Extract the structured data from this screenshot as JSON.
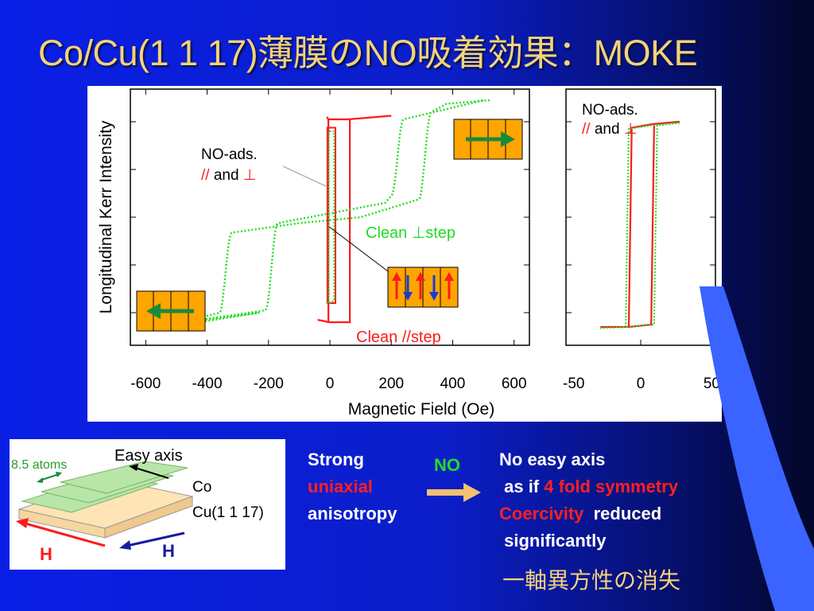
{
  "title": "Co/Cu(1 1 17)薄膜のNO吸着効果：MOKE",
  "chart_data": [
    {
      "type": "line",
      "title": "",
      "xlabel": "Magnetic Field   (Oe)",
      "ylabel": "Longitudinal Kerr Intensity",
      "xlim": [
        -650,
        650
      ],
      "xticks": [
        "-600",
        "-400",
        "-200",
        "0",
        "200",
        "400",
        "600"
      ],
      "series": [
        {
          "name": "Clean  //step",
          "color": "#ff1a1a",
          "style": "solid",
          "x": [
            -2,
            -2,
            10,
            10,
            50,
            50,
            70,
            200
          ],
          "note": "square loop",
          "loop": {
            "hc_neg": -5,
            "hc_pos": 65,
            "top": 0.82,
            "bottom": -0.82
          }
        },
        {
          "name": "Clean   ⊥step",
          "color": "#22dd22",
          "style": "dotted"
        },
        {
          "name": "NO-ads. // and ⊥",
          "color": "#ff1a1a",
          "style": "mixed"
        }
      ],
      "annotations": [
        "NO-ads.",
        "// and ⊥",
        "Clean   ⊥step",
        "Clean  //step"
      ]
    },
    {
      "type": "line",
      "title": "",
      "xlim": [
        -50,
        50
      ],
      "xticks": [
        "-50",
        "0",
        "50"
      ],
      "annotations": [
        "NO-ads.",
        "// and ⊥"
      ]
    }
  ],
  "charts": {
    "main": {
      "ylabel": "Longitudinal Kerr Intensity",
      "xlabel": "Magnetic Field   (Oe)",
      "xticks": [
        "-600",
        "-400",
        "-200",
        "0",
        "200",
        "400",
        "600"
      ],
      "label_noads": "NO-ads.",
      "label_noads_par": "//",
      "label_noads_and": " and ",
      "label_noads_perp": "⊥",
      "label_clean_perp": "Clean   ⊥step",
      "label_clean_par": "Clean  //step"
    },
    "zoom": {
      "xticks": [
        "-50",
        "0",
        "50"
      ],
      "label_noads": "NO-ads.",
      "label_noads_par": "//",
      "label_noads_and": " and ",
      "label_noads_perp": "⊥"
    }
  },
  "inset": {
    "atoms": "8.5 atoms",
    "easy_axis": "Easy axis",
    "co": "Co",
    "cu": "Cu(1 1 17)",
    "h1": "H",
    "h2": "H"
  },
  "text": {
    "strong": "Strong",
    "uniaxial": "uniaxial",
    "anisotropy": "anisotropy",
    "no": "NO",
    "no_easy": "No easy axis",
    "as_if": " as if ",
    "fourfold": "4 fold symmetry",
    "coercivity": "Coercivity",
    "reduced": "  reduced",
    "significantly": " significantly",
    "jp": "一軸異方性の消失"
  },
  "colors": {
    "accent": "#f5d27a",
    "red": "#ff1a1a",
    "green": "#22dd22",
    "orange": "#ffa500"
  }
}
